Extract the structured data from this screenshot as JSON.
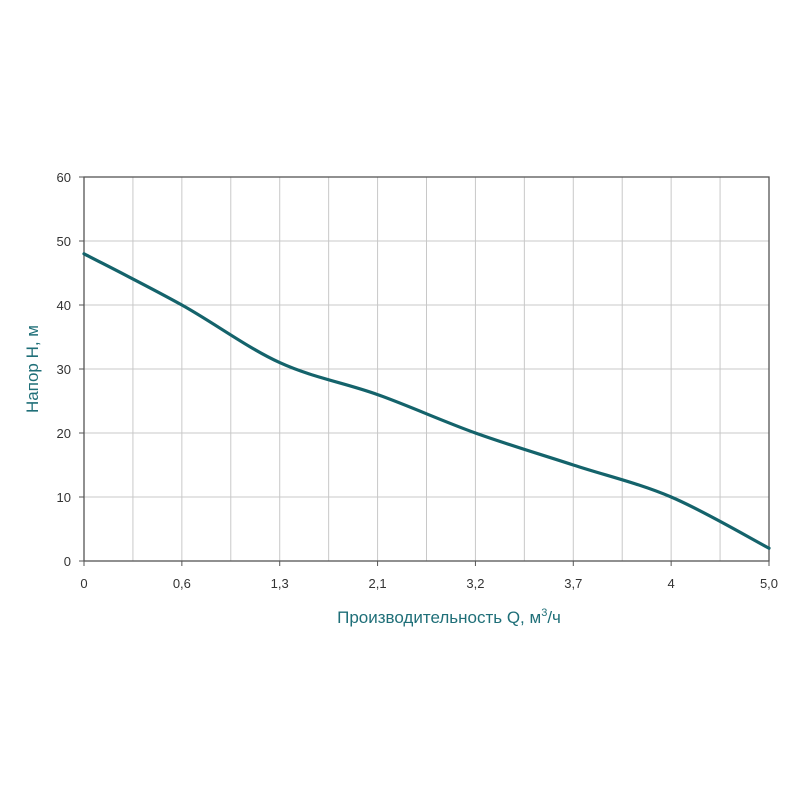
{
  "chart_data": {
    "type": "line",
    "title": "",
    "xlabel_main": "Производительность Q, м",
    "xlabel_sup": "3",
    "xlabel_tail": "/ч",
    "ylabel": "Напор H, м",
    "x_tick_labels": [
      "0",
      "0,6",
      "1,3",
      "2,1",
      "3,2",
      "3,7",
      "4",
      "5,0"
    ],
    "y_tick_labels": [
      "0",
      "10",
      "20",
      "30",
      "40",
      "50",
      "60"
    ],
    "ylim": [
      0,
      60
    ],
    "grid": true,
    "series": [
      {
        "x": [
          "0",
          "0,6",
          "1,3",
          "2,1",
          "3,2",
          "3,7",
          "4",
          "5,0"
        ],
        "values": [
          48,
          40,
          31,
          26,
          20,
          15,
          10,
          2
        ]
      }
    ],
    "colors": {
      "line": "#14636b",
      "axis_title": "#1f6f78",
      "grid": "#c8c8c8",
      "frame": "#555555"
    }
  }
}
